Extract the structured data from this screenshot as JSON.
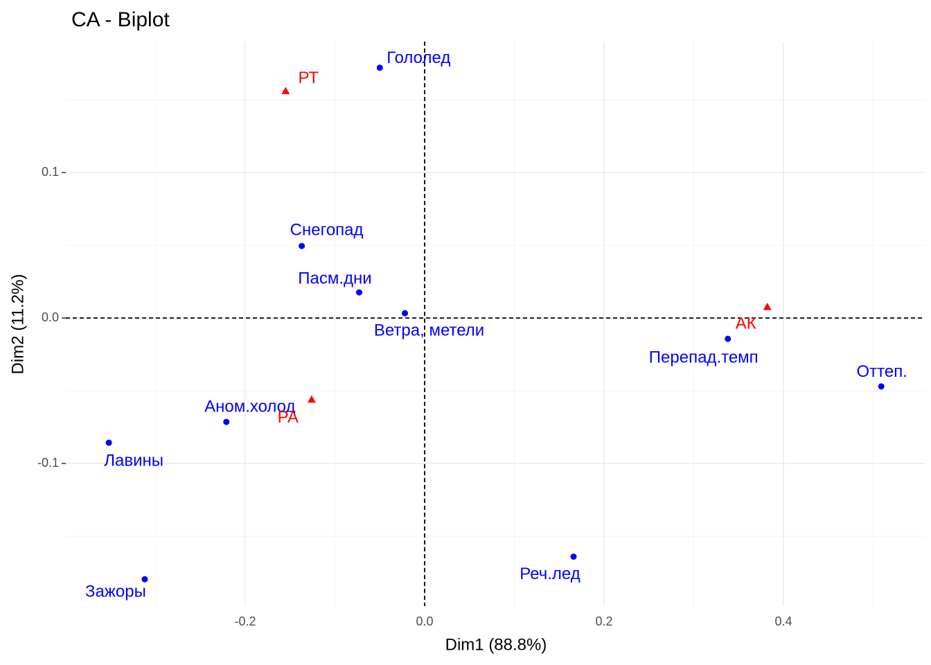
{
  "chart_data": {
    "type": "scatter",
    "title": "CA - Biplot",
    "x_label": "Dim1 (88.8%)",
    "y_label": "Dim2 (11.2%)",
    "xlim": [
      -0.4,
      0.5575
    ],
    "ylim": [
      -0.198,
      0.19
    ],
    "xticks": [
      -0.2,
      {
        "value": 0,
        "label": "0.0"
      },
      0.2,
      0.4
    ],
    "yticks": [
      -0.1,
      {
        "value": 0,
        "label": "0.0"
      },
      0.1
    ],
    "grid": true,
    "reference_lines": {
      "x": 0,
      "y": 0
    },
    "series": [
      {
        "color": "#0000ff",
        "shape": "circle",
        "labels": [
          "Гололед",
          "Снегопад",
          "Пасм.дни",
          "Ветра, метели",
          "Перепад.темп",
          "Оттеп.",
          "Аном.холод",
          "Лавины",
          "Зажоры",
          "Реч.лед"
        ],
        "x": [
          -0.05,
          -0.137,
          -0.073,
          -0.022,
          0.338,
          0.509,
          -0.221,
          -0.352,
          -0.312,
          0.166
        ],
        "values": [
          0.172,
          0.0495,
          0.0176,
          0.0033,
          -0.0143,
          -0.047,
          -0.0714,
          -0.0857,
          -0.1795,
          -0.164
        ]
      },
      {
        "color": "#ff0000",
        "shape": "triangle",
        "labels": [
          "РТ",
          "АК",
          "РА"
        ],
        "x": [
          -0.155,
          0.382,
          -0.126
        ],
        "values": [
          0.156,
          0.0076,
          -0.056
        ]
      }
    ]
  }
}
